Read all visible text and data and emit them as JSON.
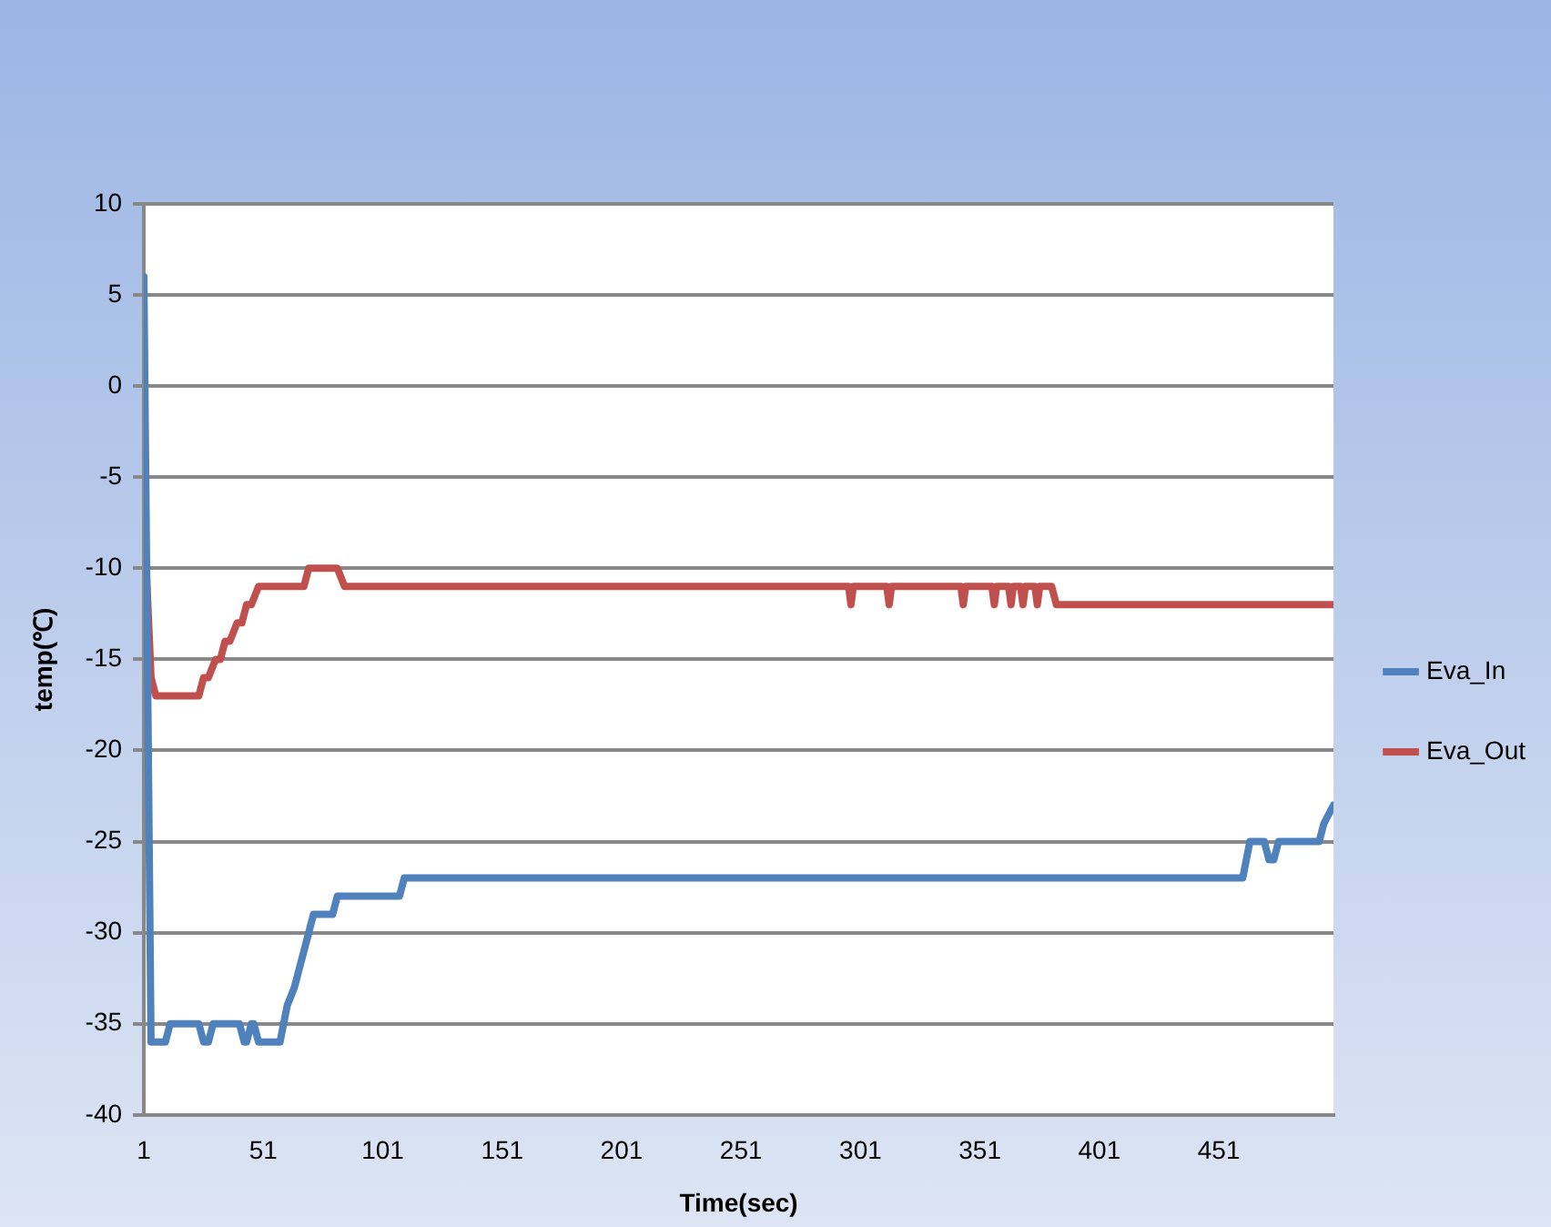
{
  "chart_data": {
    "type": "line",
    "xlabel": "Time(sec)",
    "ylabel": "temp(℃)",
    "xlim": [
      1,
      499
    ],
    "xticks": [
      1,
      51,
      101,
      151,
      201,
      251,
      301,
      351,
      401,
      451
    ],
    "ylim": [
      -40,
      10
    ],
    "yticks": [
      -40,
      -35,
      -30,
      -25,
      -20,
      -15,
      -10,
      -5,
      0,
      5,
      10
    ],
    "grid": "y",
    "legend": "right",
    "marker": "none",
    "line_style": "solid",
    "series": [
      {
        "name": "Eva_In",
        "color": "#4f81bd",
        "x": [
          1,
          4,
          10,
          12,
          24,
          26,
          28,
          30,
          33,
          41,
          43,
          44,
          46,
          47,
          49,
          50,
          58,
          61,
          64,
          66,
          68,
          70,
          72,
          73,
          80,
          82,
          108,
          110,
          461,
          464,
          470,
          472,
          474,
          476,
          493,
          495,
          499
        ],
        "values": [
          6,
          -36,
          -36,
          -35,
          -35,
          -36,
          -36,
          -35,
          -35,
          -35,
          -36,
          -36,
          -35,
          -35,
          -36,
          -36,
          -36,
          -34,
          -33,
          -32,
          -31,
          -30,
          -29,
          -29,
          -29,
          -28,
          -28,
          -27,
          -27,
          -25,
          -25,
          -26,
          -26,
          -25,
          -25,
          -24,
          -23
        ]
      },
      {
        "name": "Eva_Out",
        "color": "#c0504d",
        "x": [
          1,
          2,
          4,
          6,
          24,
          26,
          28,
          31,
          33,
          35,
          37,
          40,
          42,
          44,
          46,
          49,
          51,
          68,
          70,
          72,
          82,
          85,
          296,
          297,
          298,
          312,
          313,
          314,
          343,
          344,
          345,
          356,
          357,
          358,
          363,
          364,
          365,
          368,
          369,
          370,
          374,
          375,
          376,
          381,
          383,
          499
        ],
        "values": [
          -5,
          -10,
          -16,
          -17,
          -17,
          -16,
          -16,
          -15,
          -15,
          -14,
          -14,
          -13,
          -13,
          -12,
          -12,
          -11,
          -11,
          -11,
          -10,
          -10,
          -10,
          -11,
          -11,
          -12,
          -11,
          -11,
          -12,
          -11,
          -11,
          -12,
          -11,
          -11,
          -12,
          -11,
          -11,
          -12,
          -11,
          -11,
          -12,
          -11,
          -11,
          -12,
          -11,
          -11,
          -12,
          -12
        ]
      }
    ]
  }
}
